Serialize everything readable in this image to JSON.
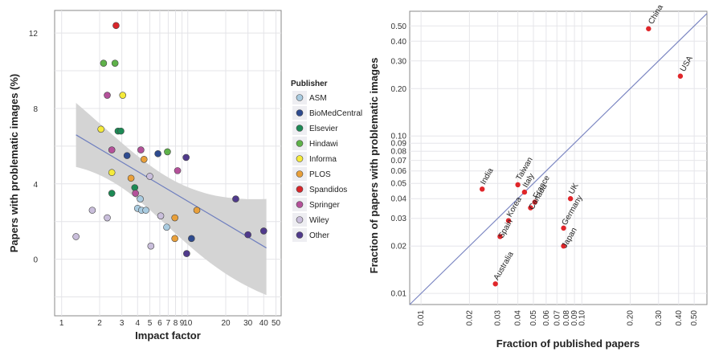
{
  "chart_data": [
    {
      "type": "scatter",
      "xscale": "log",
      "xlabel": "Impact factor",
      "ylabel": "Papers with problematic images (%)",
      "xlim": [
        0.88,
        55
      ],
      "ylim": [
        -3,
        13.2
      ],
      "xticks": [
        1,
        2,
        3,
        4,
        5,
        6,
        7,
        8,
        9,
        10,
        20,
        30,
        40,
        50
      ],
      "xtick_labels": [
        "1",
        "2",
        "3",
        "4",
        "5",
        "6",
        "7",
        "8",
        "9",
        "10",
        "20",
        "30",
        "40",
        "50"
      ],
      "yticks": [
        0,
        4,
        8,
        12
      ],
      "ytick_labels": [
        "0",
        "4",
        "8",
        "12"
      ],
      "grid": true,
      "legend": {
        "title": "Publisher",
        "position": "right",
        "items": [
          {
            "name": "ASM",
            "color": "#a9cbe0"
          },
          {
            "name": "BioMedCentral",
            "color": "#2e4b8f"
          },
          {
            "name": "Elsevier",
            "color": "#1d8a55"
          },
          {
            "name": "Hindawi",
            "color": "#5fb24a"
          },
          {
            "name": "Informa",
            "color": "#f5ea3a"
          },
          {
            "name": "PLOS",
            "color": "#e9a03a"
          },
          {
            "name": "Spandidos",
            "color": "#d8262b"
          },
          {
            "name": "Springer",
            "color": "#b4519a"
          },
          {
            "name": "Wiley",
            "color": "#c9bedb"
          },
          {
            "name": "Other",
            "color": "#503a8c"
          }
        ]
      },
      "regression": {
        "x": [
          1.3,
          42
        ],
        "y": [
          6.6,
          0.6
        ],
        "ci_low_start": 4.9,
        "ci_high_start": 8.3,
        "ci_low_end": -1.9,
        "ci_high_end": 3.2
      },
      "points": [
        {
          "publisher": "Wiley",
          "x": 1.3,
          "y": 1.2
        },
        {
          "publisher": "Wiley",
          "x": 1.75,
          "y": 2.6
        },
        {
          "publisher": "Wiley",
          "x": 2.3,
          "y": 2.2
        },
        {
          "publisher": "Hindawi",
          "x": 2.15,
          "y": 10.4
        },
        {
          "publisher": "Hindawi",
          "x": 2.65,
          "y": 10.4
        },
        {
          "publisher": "Informa",
          "x": 2.05,
          "y": 6.9
        },
        {
          "publisher": "Springer",
          "x": 2.3,
          "y": 8.7
        },
        {
          "publisher": "Springer",
          "x": 2.5,
          "y": 5.8
        },
        {
          "publisher": "Informa",
          "x": 2.5,
          "y": 4.6
        },
        {
          "publisher": "Elsevier",
          "x": 2.5,
          "y": 3.5
        },
        {
          "publisher": "Spandidos",
          "x": 2.7,
          "y": 12.4
        },
        {
          "publisher": "Elsevier",
          "x": 2.8,
          "y": 6.8
        },
        {
          "publisher": "Elsevier",
          "x": 2.95,
          "y": 6.8
        },
        {
          "publisher": "Informa",
          "x": 3.05,
          "y": 8.7
        },
        {
          "publisher": "BioMedCentral",
          "x": 3.3,
          "y": 5.5
        },
        {
          "publisher": "PLOS",
          "x": 3.55,
          "y": 4.3
        },
        {
          "publisher": "Elsevier",
          "x": 3.8,
          "y": 3.8
        },
        {
          "publisher": "Springer",
          "x": 3.85,
          "y": 3.5
        },
        {
          "publisher": "Springer",
          "x": 4.25,
          "y": 5.8
        },
        {
          "publisher": "ASM",
          "x": 4.2,
          "y": 3.2
        },
        {
          "publisher": "ASM",
          "x": 4.0,
          "y": 2.7
        },
        {
          "publisher": "ASM",
          "x": 4.3,
          "y": 2.6
        },
        {
          "publisher": "ASM",
          "x": 4.65,
          "y": 2.6
        },
        {
          "publisher": "PLOS",
          "x": 4.5,
          "y": 5.3
        },
        {
          "publisher": "Wiley",
          "x": 5.0,
          "y": 4.4
        },
        {
          "publisher": "Wiley",
          "x": 5.1,
          "y": 0.7
        },
        {
          "publisher": "BioMedCentral",
          "x": 5.8,
          "y": 5.6
        },
        {
          "publisher": "Wiley",
          "x": 6.1,
          "y": 2.3
        },
        {
          "publisher": "Hindawi",
          "x": 6.9,
          "y": 5.7
        },
        {
          "publisher": "ASM",
          "x": 6.8,
          "y": 1.7
        },
        {
          "publisher": "PLOS",
          "x": 7.9,
          "y": 2.2
        },
        {
          "publisher": "PLOS",
          "x": 7.9,
          "y": 1.1
        },
        {
          "publisher": "Springer",
          "x": 8.3,
          "y": 4.7
        },
        {
          "publisher": "Other",
          "x": 9.7,
          "y": 5.4
        },
        {
          "publisher": "Other",
          "x": 9.8,
          "y": 0.3
        },
        {
          "publisher": "BioMedCentral",
          "x": 10.7,
          "y": 1.1
        },
        {
          "publisher": "PLOS",
          "x": 11.8,
          "y": 2.6
        },
        {
          "publisher": "Other",
          "x": 24,
          "y": 3.2
        },
        {
          "publisher": "Other",
          "x": 30,
          "y": 1.3
        },
        {
          "publisher": "Other",
          "x": 40,
          "y": 1.5
        }
      ]
    },
    {
      "type": "scatter",
      "xscale": "log",
      "yscale": "log",
      "xlabel": "Fraction of published papers",
      "ylabel": "Fraction of papers with problematic images",
      "xlim": [
        0.0085,
        0.6
      ],
      "ylim": [
        0.0085,
        0.62
      ],
      "xticks": [
        0.01,
        0.02,
        0.03,
        0.04,
        0.05,
        0.06,
        0.07,
        0.08,
        0.09,
        0.1,
        0.2,
        0.3,
        0.4,
        0.5
      ],
      "xtick_labels": [
        "0.01",
        "0.02",
        "0.03",
        "0.04",
        "0.05",
        "0.06",
        "0.07",
        "0.08",
        "0.09",
        "0.10",
        "0.20",
        "0.30",
        "0.40",
        "0.50"
      ],
      "yticks": [
        0.01,
        0.02,
        0.03,
        0.04,
        0.05,
        0.06,
        0.07,
        0.08,
        0.09,
        0.1,
        0.2,
        0.3,
        0.4,
        0.5
      ],
      "ytick_labels": [
        "0.01",
        "0.02",
        "0.03",
        "0.04",
        "0.05",
        "0.06",
        "0.07",
        "0.08",
        "0.09",
        "0.10",
        "0.20",
        "0.30",
        "0.40",
        "0.50"
      ],
      "grid": true,
      "reference_line": "y = x",
      "points": [
        {
          "label": "China",
          "x": 0.26,
          "y": 0.48
        },
        {
          "label": "USA",
          "x": 0.41,
          "y": 0.24
        },
        {
          "label": "India",
          "x": 0.024,
          "y": 0.046
        },
        {
          "label": "Taiwan",
          "x": 0.04,
          "y": 0.049
        },
        {
          "label": "Italy",
          "x": 0.044,
          "y": 0.044
        },
        {
          "label": "Korea",
          "x": 0.035,
          "y": 0.029
        },
        {
          "label": "France",
          "x": 0.051,
          "y": 0.038
        },
        {
          "label": "Canada",
          "x": 0.048,
          "y": 0.035
        },
        {
          "label": "UK",
          "x": 0.085,
          "y": 0.04
        },
        {
          "label": "Spain",
          "x": 0.031,
          "y": 0.023
        },
        {
          "label": "Germany",
          "x": 0.077,
          "y": 0.026
        },
        {
          "label": "Japan",
          "x": 0.077,
          "y": 0.02
        },
        {
          "label": "Australia",
          "x": 0.029,
          "y": 0.0115
        }
      ]
    }
  ]
}
